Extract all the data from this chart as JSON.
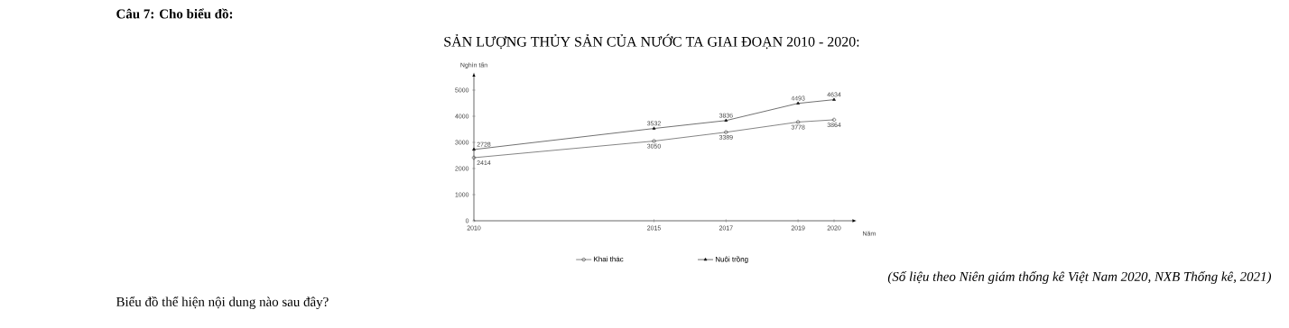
{
  "chart_data": {
    "type": "line",
    "title": "SẢN LƯỢNG THỦY SẢN CỦA NƯỚC TA GIAI ĐOẠN 2010 - 2020:",
    "xlabel": "Năm",
    "ylabel": "Nghìn tấn",
    "x": [
      2010,
      2015,
      2017,
      2019,
      2020
    ],
    "series": [
      {
        "name": "Khai thác",
        "color": "#333333",
        "marker": "circle",
        "values": [
          2414,
          3050,
          3389,
          3778,
          3864
        ]
      },
      {
        "name": "Nuôi trồng",
        "color": "#111111",
        "marker": "triangle",
        "values": [
          2728,
          3532,
          3836,
          4493,
          4634
        ]
      }
    ],
    "xlim": [
      2010,
      2020.5
    ],
    "xticks": [
      2010,
      2015,
      2017,
      2019,
      2020
    ],
    "ylim": [
      0,
      5500
    ],
    "yticks": [
      0,
      1000,
      2000,
      3000,
      4000,
      5000
    ],
    "data_labels": true,
    "legend": "bottom",
    "grid": false,
    "annotations": [
      "Câu 7: Cho biểu đồ:",
      "(Số liệu theo Niên giám thống kê Việt Nam 2020, NXB Thống kê, 2021)",
      "Biểu đồ thể hiện nội dung nào sau đây?"
    ]
  }
}
